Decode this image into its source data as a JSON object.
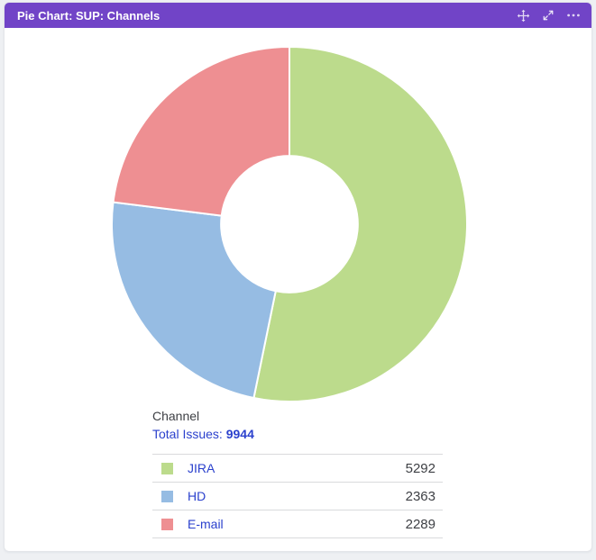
{
  "header": {
    "title": "Pie Chart: SUP: Channels",
    "icons": [
      "move-icon",
      "expand-icon",
      "more-options-icon"
    ]
  },
  "info": {
    "dimension_label": "Channel",
    "total_label": "Total Issues:",
    "total_value": "9944"
  },
  "chart_data": {
    "type": "pie",
    "title": "Pie Chart: SUP: Channels",
    "categories": [
      "JIRA",
      "HD",
      "E-mail"
    ],
    "values": [
      5292,
      2363,
      2289
    ],
    "total": 9944,
    "colors": [
      "#bcdb8c",
      "#96bce3",
      "#ee8f92"
    ],
    "donut": true,
    "inner_radius_ratio": 0.385,
    "start_angle_deg": 0,
    "direction": "clockwise",
    "slice_gap_stroke": "#ffffff",
    "legend_position": "bottom"
  },
  "colors": {
    "page_bg": "#eef0f3",
    "card_bg": "#ffffff",
    "card_border": "#e4e6ea",
    "header_bg": "#7144c7",
    "header_text": "#ffffff",
    "link_blue": "#2b41cd",
    "text_dark": "#3e4045",
    "divider": "#d9dadc"
  }
}
